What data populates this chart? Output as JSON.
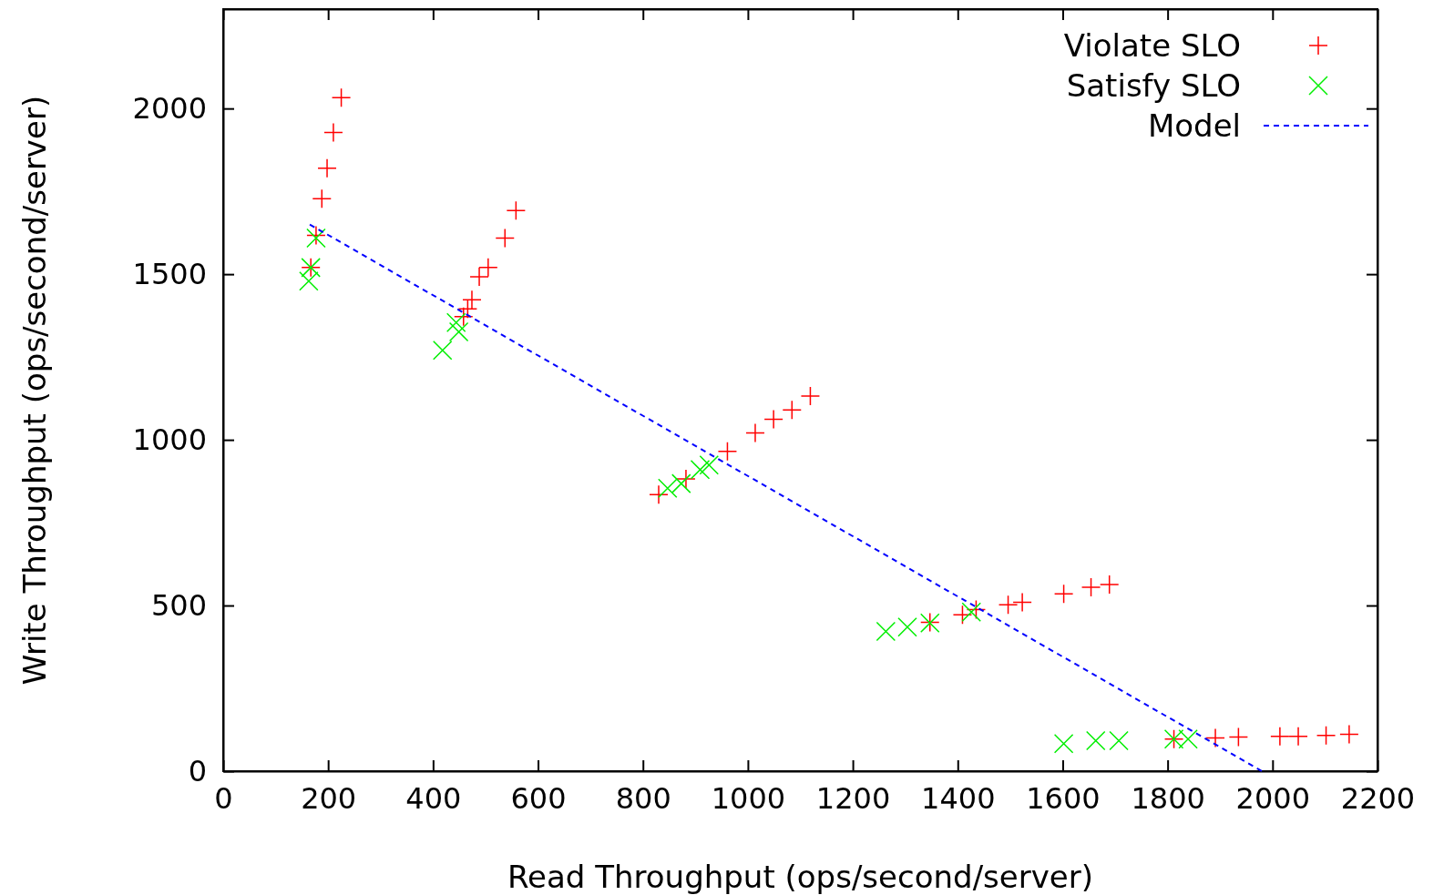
{
  "chart_data": {
    "type": "scatter",
    "xlabel": "Read Throughput (ops/second/server)",
    "ylabel": "Write Throughput (ops/second/server)",
    "xlim": [
      0,
      2200
    ],
    "ylim": [
      0,
      2300
    ],
    "xticks": [
      0,
      200,
      400,
      600,
      800,
      1000,
      1200,
      1400,
      1600,
      1800,
      2000,
      2200
    ],
    "yticks": [
      0,
      500,
      1000,
      1500,
      2000
    ],
    "grid": false,
    "legend": "top right",
    "series": [
      {
        "name": "Violate SLO",
        "color": "#ff0000",
        "marker": "cross",
        "x": [
          167,
          177,
          188,
          198,
          210,
          225,
          458,
          466,
          474,
          488,
          505,
          537,
          558,
          830,
          882,
          961,
          1014,
          1049,
          1084,
          1119,
          1347,
          1409,
          1435,
          1496,
          1523,
          1602,
          1654,
          1689,
          1812,
          1891,
          1935,
          2014,
          2049,
          2102,
          2146
        ],
        "values": [
          1520,
          1617,
          1728,
          1820,
          1928,
          2033,
          1372,
          1395,
          1423,
          1492,
          1520,
          1609,
          1692,
          835,
          882,
          965,
          1021,
          1062,
          1090,
          1132,
          449,
          472,
          488,
          502,
          510,
          535,
          555,
          563,
          97,
          100,
          103,
          105,
          105,
          108,
          111
        ]
      },
      {
        "name": "Satisfy SLO",
        "color": "#00ee00",
        "marker": "x",
        "x": [
          163,
          167,
          177,
          418,
          444,
          449,
          847,
          873,
          909,
          926,
          1263,
          1304,
          1347,
          1426,
          1602,
          1663,
          1707,
          1812,
          1839
        ],
        "values": [
          1479,
          1520,
          1609,
          1270,
          1354,
          1326,
          854,
          868,
          910,
          924,
          422,
          435,
          447,
          480,
          83,
          92,
          92,
          97,
          97
        ]
      },
      {
        "name": "Model",
        "type": "line",
        "color": "#0000ff",
        "line_style": "dashed",
        "marker": "none",
        "x": [
          165,
          1980
        ],
        "values": [
          1650,
          0
        ]
      }
    ]
  }
}
